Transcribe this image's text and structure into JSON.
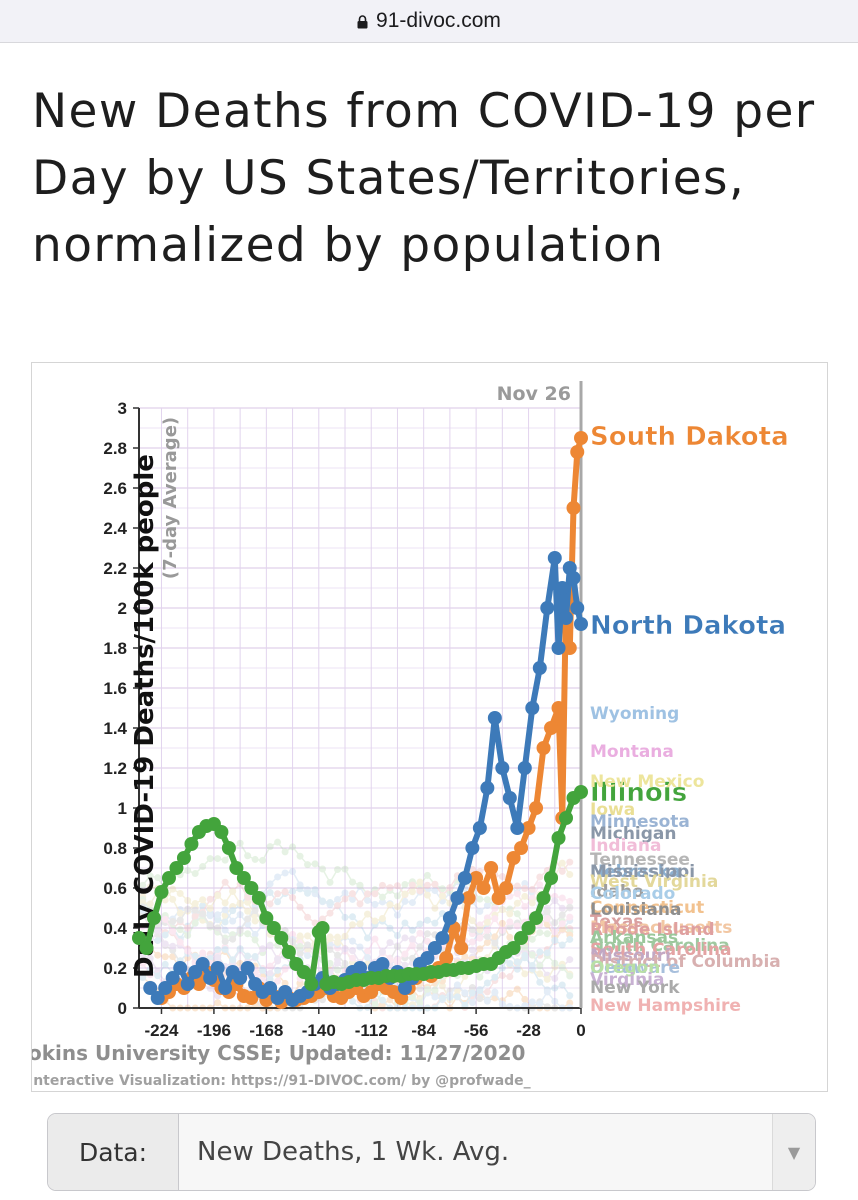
{
  "browser": {
    "url": "91-divoc.com",
    "lock_icon": "lock-icon"
  },
  "page": {
    "title": "New Deaths from COVID-19 per Day by US States/Territories, normalized by population"
  },
  "chart_data": {
    "type": "line",
    "ylabel": "Daily COVID-19 Deaths/100k people",
    "ylabel_sub": "(7-day Average)",
    "ylim": [
      0,
      3
    ],
    "xlim": [
      -236,
      0
    ],
    "y_ticks": [
      "0",
      "0.2",
      "0.4",
      "0.6",
      "0.8",
      "1",
      "1.2",
      "1.4",
      "1.6",
      "1.8",
      "2",
      "2.2",
      "2.4",
      "2.6",
      "2.8",
      "3"
    ],
    "x_ticks": [
      "-224",
      "-196",
      "-168",
      "-140",
      "-112",
      "-84",
      "-56",
      "-28",
      "0"
    ],
    "date_marker": "Nov 26",
    "source_text": "okins University CSSE; Updated: 11/27/2020",
    "credit_text": "Interactive Visualization: https://91-DIVOC.com/ by @profwade_",
    "grid": true,
    "series": [
      {
        "name": "South Dakota",
        "color": "#ed8734",
        "x": [
          -224,
          -220,
          -216,
          -212,
          -208,
          -204,
          -200,
          -196,
          -192,
          -188,
          -184,
          -180,
          -176,
          -172,
          -168,
          -164,
          -160,
          -156,
          -152,
          -148,
          -144,
          -140,
          -136,
          -132,
          -128,
          -124,
          -120,
          -116,
          -112,
          -108,
          -104,
          -100,
          -96,
          -92,
          -88,
          -84,
          -80,
          -76,
          -72,
          -68,
          -64,
          -60,
          -56,
          -52,
          -48,
          -44,
          -40,
          -36,
          -32,
          -28,
          -24,
          -20,
          -16,
          -12,
          -10,
          -8,
          -6,
          -4,
          -2,
          0
        ],
        "values": [
          0.05,
          0.08,
          0.12,
          0.1,
          0.15,
          0.12,
          0.18,
          0.14,
          0.1,
          0.08,
          0.12,
          0.06,
          0.05,
          0.1,
          0.04,
          0.06,
          0.03,
          0.05,
          0.04,
          0.05,
          0.06,
          0.08,
          0.1,
          0.06,
          0.05,
          0.08,
          0.1,
          0.06,
          0.08,
          0.12,
          0.1,
          0.08,
          0.05,
          0.1,
          0.15,
          0.18,
          0.16,
          0.2,
          0.25,
          0.4,
          0.3,
          0.55,
          0.65,
          0.6,
          0.7,
          0.55,
          0.6,
          0.75,
          0.8,
          0.9,
          1.0,
          1.3,
          1.4,
          1.5,
          0.95,
          2.05,
          1.8,
          2.5,
          2.78,
          2.85
        ]
      },
      {
        "name": "North Dakota",
        "color": "#3d7ab9",
        "x": [
          -230,
          -226,
          -222,
          -218,
          -214,
          -210,
          -206,
          -202,
          -198,
          -194,
          -190,
          -186,
          -182,
          -178,
          -174,
          -170,
          -166,
          -162,
          -158,
          -154,
          -150,
          -146,
          -142,
          -138,
          -134,
          -130,
          -126,
          -122,
          -118,
          -114,
          -110,
          -106,
          -102,
          -98,
          -94,
          -90,
          -86,
          -82,
          -78,
          -74,
          -70,
          -66,
          -62,
          -58,
          -54,
          -50,
          -46,
          -42,
          -38,
          -34,
          -30,
          -26,
          -22,
          -18,
          -14,
          -12,
          -10,
          -8,
          -6,
          -4,
          -2,
          0
        ],
        "values": [
          0.1,
          0.05,
          0.1,
          0.15,
          0.2,
          0.12,
          0.18,
          0.22,
          0.15,
          0.2,
          0.1,
          0.18,
          0.15,
          0.2,
          0.12,
          0.08,
          0.1,
          0.05,
          0.08,
          0.04,
          0.06,
          0.08,
          0.12,
          0.15,
          0.1,
          0.12,
          0.14,
          0.18,
          0.2,
          0.15,
          0.2,
          0.22,
          0.15,
          0.18,
          0.1,
          0.15,
          0.22,
          0.25,
          0.3,
          0.35,
          0.45,
          0.55,
          0.65,
          0.8,
          0.9,
          1.1,
          1.45,
          1.2,
          1.05,
          0.9,
          1.2,
          1.5,
          1.7,
          2.0,
          2.25,
          1.8,
          2.1,
          1.95,
          2.2,
          2.15,
          2.0,
          1.92
        ]
      },
      {
        "name": "Illinois",
        "color": "#43a43c",
        "x": [
          -236,
          -232,
          -228,
          -224,
          -220,
          -216,
          -212,
          -208,
          -204,
          -200,
          -196,
          -192,
          -188,
          -184,
          -180,
          -176,
          -172,
          -168,
          -164,
          -160,
          -156,
          -152,
          -148,
          -144,
          -140,
          -138,
          -136,
          -132,
          -128,
          -124,
          -120,
          -116,
          -112,
          -108,
          -104,
          -100,
          -96,
          -92,
          -88,
          -84,
          -80,
          -76,
          -72,
          -68,
          -64,
          -60,
          -56,
          -52,
          -48,
          -44,
          -40,
          -36,
          -32,
          -28,
          -24,
          -20,
          -16,
          -12,
          -8,
          -4,
          0
        ],
        "values": [
          0.35,
          0.3,
          0.45,
          0.58,
          0.65,
          0.7,
          0.75,
          0.82,
          0.88,
          0.91,
          0.92,
          0.88,
          0.8,
          0.7,
          0.65,
          0.6,
          0.55,
          0.45,
          0.4,
          0.35,
          0.28,
          0.22,
          0.18,
          0.12,
          0.38,
          0.4,
          0.12,
          0.13,
          0.12,
          0.13,
          0.14,
          0.14,
          0.15,
          0.15,
          0.16,
          0.16,
          0.16,
          0.17,
          0.17,
          0.17,
          0.18,
          0.18,
          0.19,
          0.19,
          0.2,
          0.2,
          0.21,
          0.22,
          0.22,
          0.25,
          0.28,
          0.3,
          0.35,
          0.4,
          0.45,
          0.55,
          0.65,
          0.85,
          0.95,
          1.05,
          1.08
        ]
      }
    ],
    "faded_labels": [
      {
        "name": "Wyoming",
        "value": 1.48,
        "color": "#9fc2e3"
      },
      {
        "name": "Montana",
        "value": 1.29,
        "color": "#eaaee0"
      },
      {
        "name": "New Mexico",
        "value": 1.14,
        "color": "#ede59c"
      },
      {
        "name": "Iowa",
        "value": 1.0,
        "color": "#eadf95"
      },
      {
        "name": "Minnesota",
        "value": 0.94,
        "color": "#9bb4d4"
      },
      {
        "name": "Michigan",
        "value": 0.88,
        "color": "#8a97a8"
      },
      {
        "name": "Indiana",
        "value": 0.82,
        "color": "#f1bdd8"
      },
      {
        "name": "Tennessee",
        "value": 0.75,
        "color": "#b6b6b6"
      },
      {
        "name": "Nebraska",
        "value": 0.69,
        "color": "#8cb0d0"
      },
      {
        "name": "Mississippi",
        "value": 0.69,
        "color": "#8a97a8"
      },
      {
        "name": "West Virginia",
        "value": 0.64,
        "color": "#e3d89b"
      },
      {
        "name": "Idaho",
        "value": 0.59,
        "color": "#9e9e9e"
      },
      {
        "name": "Colorado",
        "value": 0.58,
        "color": "#a9cde8"
      },
      {
        "name": "Connecticut",
        "value": 0.51,
        "color": "#f2c28f"
      },
      {
        "name": "Louisiana",
        "value": 0.5,
        "color": "#8e8e8e"
      },
      {
        "name": "Texas",
        "value": 0.44,
        "color": "#d9a0a0"
      },
      {
        "name": "Massachusetts",
        "value": 0.41,
        "color": "#f2c7a3"
      },
      {
        "name": "Rhode Island",
        "value": 0.4,
        "color": "#dfa0a0"
      },
      {
        "name": "Arkansas",
        "value": 0.36,
        "color": "#9ac79a"
      },
      {
        "name": "North Carolina",
        "value": 0.32,
        "color": "#9fc9a0"
      },
      {
        "name": "South Carolina",
        "value": 0.3,
        "color": "#e4a3a3"
      },
      {
        "name": "Missouri",
        "value": 0.27,
        "color": "#c1a8c4"
      },
      {
        "name": "District of Columbia",
        "value": 0.24,
        "color": "#d8b0b0"
      },
      {
        "name": "Delaware",
        "value": 0.21,
        "color": "#a7bfdc"
      },
      {
        "name": "Oregon",
        "value": 0.21,
        "color": "#b9dfa6"
      },
      {
        "name": "Virginia",
        "value": 0.15,
        "color": "#c8b1d3"
      },
      {
        "name": "New York",
        "value": 0.11,
        "color": "#aaaaaa"
      },
      {
        "name": "New Hampshire",
        "value": 0.02,
        "color": "#f0b2b2"
      }
    ]
  },
  "selector": {
    "label": "Data:",
    "value": "New Deaths, 1 Wk. Avg.",
    "chevron_icon": "chevron-down-icon"
  }
}
